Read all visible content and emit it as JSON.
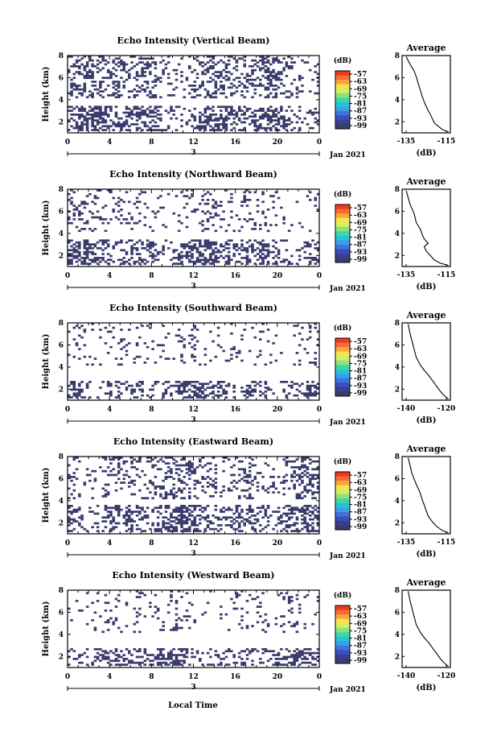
{
  "figure": {
    "xlabel": "Local Time",
    "date_label": "Jan 2021",
    "colorbar_unit": "(dB)",
    "colorbar_ticks": [
      "-57",
      "-63",
      "-69",
      "-75",
      "-81",
      "-87",
      "-93",
      "-99"
    ],
    "colorbar_colors": [
      "#ee3b1e",
      "#f46d32",
      "#fba53f",
      "#f6e44f",
      "#d3ef63",
      "#8fe07e",
      "#3fd7a4",
      "#27c3d8",
      "#3c9ee9",
      "#3f73db",
      "#3a4fbb",
      "#3a3f8f",
      "#3b3b6d"
    ],
    "mask_color": "#3b3b6d"
  },
  "chart_data": [
    {
      "type": "heatmap",
      "title": "Echo Intensity (Vertical Beam)",
      "xlabel": "Local Time",
      "ylabel": "Height (km)",
      "xlim": [
        0,
        24
      ],
      "ylim": [
        1,
        8
      ],
      "xticks": [
        "0",
        "4",
        "8",
        "12",
        "16",
        "20",
        "0"
      ],
      "xtick_sub": "3",
      "yticks": [
        "2",
        "4",
        "6",
        "8"
      ],
      "layers": [
        [
          1.2,
          3.5,
          0.55
        ],
        [
          4.2,
          8.0,
          0.35
        ]
      ],
      "profile": {
        "title": "Average",
        "xlabel": "(dB)",
        "xticks": [
          "-135",
          "-115"
        ],
        "xlim": [
          -137,
          -113
        ],
        "yticks": [
          "2",
          "4",
          "6",
          "8"
        ],
        "ylim": [
          1,
          8
        ],
        "x": [
          -114,
          -117,
          -119,
          -121,
          -122,
          -123,
          -124,
          -125,
          -126,
          -127,
          -128,
          -129,
          -130,
          -131,
          -133,
          -135
        ],
        "y": [
          1.1,
          1.3,
          1.6,
          1.9,
          2.3,
          2.7,
          3.0,
          3.4,
          3.8,
          4.3,
          4.9,
          5.5,
          6.1,
          6.6,
          7.2,
          7.9
        ]
      }
    },
    {
      "type": "heatmap",
      "title": "Echo Intensity (Northward Beam)",
      "xlabel": "Local Time",
      "ylabel": "Height (km)",
      "xlim": [
        0,
        24
      ],
      "ylim": [
        1,
        8
      ],
      "xticks": [
        "0",
        "4",
        "8",
        "12",
        "16",
        "20",
        "0"
      ],
      "xtick_sub": "3",
      "yticks": [
        "2",
        "4",
        "6",
        "8"
      ],
      "layers": [
        [
          1.2,
          3.5,
          0.5
        ],
        [
          4.2,
          8.0,
          0.15
        ]
      ],
      "profile": {
        "title": "Average",
        "xlabel": "(dB)",
        "xticks": [
          "-135",
          "-115"
        ],
        "xlim": [
          -137,
          -113
        ],
        "yticks": [
          "2",
          "4",
          "6",
          "8"
        ],
        "ylim": [
          1,
          8
        ],
        "x": [
          -114,
          -118,
          -121,
          -123,
          -125,
          -126,
          -124,
          -126,
          -127,
          -128,
          -130,
          -131,
          -133,
          -135
        ],
        "y": [
          1.1,
          1.3,
          1.6,
          2.0,
          2.4,
          2.8,
          3.1,
          3.5,
          3.9,
          4.4,
          5.0,
          5.8,
          6.6,
          7.9
        ]
      }
    },
    {
      "type": "heatmap",
      "title": "Echo Intensity (Southward Beam)",
      "xlabel": "Local Time",
      "ylabel": "Height (km)",
      "xlim": [
        0,
        24
      ],
      "ylim": [
        1,
        8
      ],
      "xticks": [
        "0",
        "4",
        "8",
        "12",
        "16",
        "20",
        "0"
      ],
      "xtick_sub": "3",
      "yticks": [
        "2",
        "4",
        "6",
        "8"
      ],
      "layers": [
        [
          1.2,
          2.8,
          0.45
        ],
        [
          4.2,
          8.0,
          0.12
        ]
      ],
      "profile": {
        "title": "Average",
        "xlabel": "(dB)",
        "xticks": [
          "-140",
          "-120"
        ],
        "xlim": [
          -142,
          -118
        ],
        "yticks": [
          "2",
          "4",
          "6",
          "8"
        ],
        "ylim": [
          1,
          8
        ],
        "x": [
          -119,
          -121,
          -123,
          -125,
          -127,
          -129,
          -131,
          -133,
          -135,
          -136,
          -137,
          -138,
          -139
        ],
        "y": [
          1.1,
          1.4,
          1.8,
          2.3,
          2.8,
          3.3,
          3.7,
          4.2,
          4.9,
          5.6,
          6.3,
          7.0,
          7.9
        ]
      }
    },
    {
      "type": "heatmap",
      "title": "Echo Intensity (Eastward Beam)",
      "xlabel": "Local Time",
      "ylabel": "Height (km)",
      "xlim": [
        0,
        24
      ],
      "ylim": [
        1,
        8
      ],
      "xticks": [
        "0",
        "4",
        "8",
        "12",
        "16",
        "20",
        "0"
      ],
      "xtick_sub": "3",
      "yticks": [
        "2",
        "4",
        "6",
        "8"
      ],
      "layers": [
        [
          1.2,
          3.6,
          0.5
        ],
        [
          4.2,
          8.0,
          0.3
        ]
      ],
      "profile": {
        "title": "Average",
        "xlabel": "(dB)",
        "xticks": [
          "-135",
          "-115"
        ],
        "xlim": [
          -137,
          -113
        ],
        "yticks": [
          "2",
          "4",
          "6",
          "8"
        ],
        "ylim": [
          1,
          8
        ],
        "x": [
          -114,
          -117,
          -120,
          -122,
          -124,
          -125,
          -126,
          -127,
          -128,
          -130,
          -132,
          -134
        ],
        "y": [
          1.1,
          1.3,
          1.7,
          2.1,
          2.6,
          3.1,
          3.6,
          4.1,
          4.7,
          5.5,
          6.4,
          7.9
        ]
      }
    },
    {
      "type": "heatmap",
      "title": "Echo Intensity (Westward Beam)",
      "xlabel": "Local Time",
      "ylabel": "Height (km)",
      "xlim": [
        0,
        24
      ],
      "ylim": [
        1,
        8
      ],
      "xticks": [
        "0",
        "4",
        "8",
        "12",
        "16",
        "20",
        "0"
      ],
      "xtick_sub": "3",
      "yticks": [
        "2",
        "4",
        "6",
        "8"
      ],
      "layers": [
        [
          1.2,
          2.8,
          0.45
        ],
        [
          4.2,
          8.0,
          0.12
        ]
      ],
      "profile": {
        "title": "Average",
        "xlabel": "(dB)",
        "xticks": [
          "-140",
          "-120"
        ],
        "xlim": [
          -142,
          -118
        ],
        "yticks": [
          "2",
          "4",
          "6",
          "8"
        ],
        "ylim": [
          1,
          8
        ],
        "x": [
          -119,
          -121,
          -123,
          -125,
          -127,
          -129,
          -131,
          -133,
          -135,
          -136,
          -137,
          -138,
          -139
        ],
        "y": [
          1.1,
          1.4,
          1.8,
          2.3,
          2.8,
          3.3,
          3.7,
          4.2,
          4.9,
          5.6,
          6.3,
          7.0,
          7.9
        ]
      }
    }
  ]
}
